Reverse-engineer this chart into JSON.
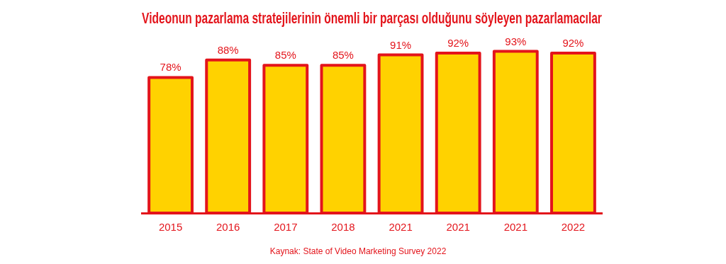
{
  "chart_data": {
    "type": "bar",
    "title": "Videonun pazarlama stratejilerinin önemli bir parçası olduğunu söyleyen pazarlamacılar",
    "categories": [
      "2015",
      "2016",
      "2017",
      "2018",
      "2021",
      "2021",
      "2021",
      "2022"
    ],
    "series": [
      {
        "color": "#ffd200",
        "values": [
          78,
          88,
          85,
          85,
          91,
          92,
          93,
          92
        ],
        "value_labels": [
          "78%",
          "88%",
          "85%",
          "85%",
          "91%",
          "92%",
          "93%",
          "92%"
        ]
      }
    ],
    "grid": false,
    "legend": false,
    "tick_labels": "x",
    "annotations": [
      "Kaynak: State of Video Marketing Survey 2022"
    ]
  }
}
